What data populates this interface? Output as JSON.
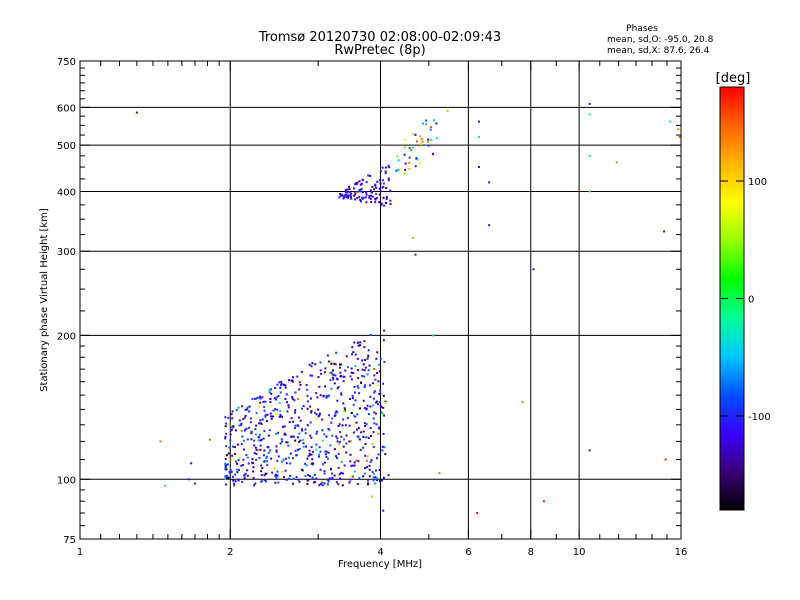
{
  "chart_data": {
    "type": "scatter",
    "title": "Tromsø 20120730 02:08:00-02:09:43",
    "subtitle": "RwPretec (8p)",
    "xlabel": "Frequency [MHz]",
    "ylabel": "Stationary phase Virtual Height [km]",
    "xscale": "log",
    "yscale": "log",
    "xlim": [
      1,
      16
    ],
    "ylim": [
      75,
      750
    ],
    "x_major_ticks": [
      {
        "value": 1,
        "label": "1"
      },
      {
        "value": 2,
        "label": "2"
      },
      {
        "value": 4,
        "label": "4"
      },
      {
        "value": 6,
        "label": "6"
      },
      {
        "value": 8,
        "label": "8"
      },
      {
        "value": 10,
        "label": "10"
      },
      {
        "value": 16,
        "label": "16"
      }
    ],
    "x_gridlines": [
      2,
      4,
      6,
      8,
      10
    ],
    "y_major_ticks": [
      {
        "value": 75,
        "label": "75"
      },
      {
        "value": 100,
        "label": "100"
      },
      {
        "value": 200,
        "label": "200"
      },
      {
        "value": 300,
        "label": "300"
      },
      {
        "value": 400,
        "label": "400"
      },
      {
        "value": 500,
        "label": "500"
      },
      {
        "value": 600,
        "label": "600"
      },
      {
        "value": 750,
        "label": "750"
      }
    ],
    "y_gridlines": [
      100,
      200,
      300,
      400,
      500,
      600
    ],
    "grid": true,
    "phases_info": {
      "heading": "Phases",
      "line_o": "mean, sd,O: -95.0, 20.8",
      "line_x": "mean, sd,X: 87.6, 26.4"
    },
    "colorbar": {
      "label": "[deg]",
      "range": [
        -180,
        180
      ],
      "ticks": [
        {
          "value": 100,
          "label": "100"
        },
        {
          "value": 0,
          "label": "0"
        },
        {
          "value": -100,
          "label": "-100"
        }
      ],
      "stops": [
        "#000000",
        "#3a0078",
        "#3a00ff",
        "#0050ff",
        "#00c8ff",
        "#00ff96",
        "#00ff00",
        "#96ff00",
        "#ffff00",
        "#ffb400",
        "#ff6400",
        "#ff0000"
      ]
    },
    "sparse_points": [
      [
        1.3,
        585,
        -110
      ],
      [
        1.45,
        120,
        140
      ],
      [
        1.48,
        97,
        -5
      ],
      [
        1.65,
        100,
        -110
      ],
      [
        1.67,
        108,
        -120
      ],
      [
        1.7,
        98,
        -100
      ],
      [
        1.82,
        121,
        150
      ],
      [
        3.85,
        92,
        120
      ],
      [
        4.15,
        102,
        -110
      ],
      [
        4.05,
        86,
        -120
      ],
      [
        4.65,
        320,
        130
      ],
      [
        4.7,
        295,
        -110
      ],
      [
        5.1,
        480,
        160
      ],
      [
        5.1,
        200,
        -30
      ],
      [
        5.25,
        103,
        140
      ],
      [
        5.45,
        590,
        120
      ],
      [
        6.25,
        85,
        180
      ],
      [
        6.3,
        560,
        -110
      ],
      [
        6.3,
        520,
        -20
      ],
      [
        6.3,
        450,
        -110
      ],
      [
        6.6,
        418,
        -110
      ],
      [
        6.6,
        340,
        -110
      ],
      [
        7.7,
        145,
        140
      ],
      [
        8.1,
        275,
        -110
      ],
      [
        8.5,
        90,
        170
      ],
      [
        10.5,
        610,
        -110
      ],
      [
        10.5,
        580,
        -10
      ],
      [
        10.5,
        475,
        10
      ],
      [
        10.5,
        400,
        20
      ],
      [
        10.5,
        115,
        -120
      ],
      [
        11.9,
        460,
        140
      ],
      [
        14.8,
        330,
        -110
      ],
      [
        14.9,
        110,
        170
      ],
      [
        15.2,
        560,
        -10
      ],
      [
        15.8,
        540,
        130
      ],
      [
        15.9,
        520,
        150
      ]
    ],
    "clusters": [
      {
        "x": [
          1.95,
          4.1
        ],
        "y": [
          97,
          208
        ],
        "count": 720,
        "phase_mean": -110,
        "phase_sd": 25,
        "mixed_fraction": 0.05
      },
      {
        "x": [
          3.3,
          4.2
        ],
        "y": [
          370,
          460
        ],
        "count": 120,
        "phase_mean": -115,
        "phase_sd": 15,
        "mixed_fraction": 0.02
      },
      {
        "x": [
          4.3,
          5.2
        ],
        "y": [
          420,
          620
        ],
        "count": 45,
        "phase_mean": -90,
        "phase_sd": 30,
        "mixed_fraction": 0.4
      }
    ]
  }
}
